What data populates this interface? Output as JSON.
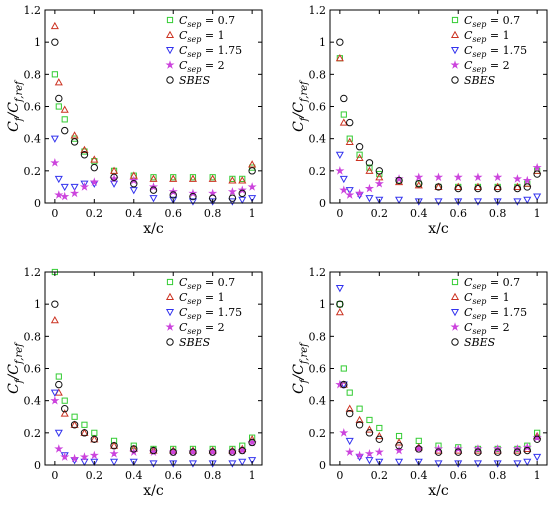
{
  "legend_items": [
    {
      "symbol": "square",
      "color": "#33cc33",
      "text": "C",
      "sub": "sep",
      "tail": " = 0.7"
    },
    {
      "symbol": "tri-up",
      "color": "#cc3322",
      "text": "C",
      "sub": "sep",
      "tail": " = 1"
    },
    {
      "symbol": "tri-down",
      "color": "#3333ee",
      "text": "C",
      "sub": "sep",
      "tail": " = 1.75"
    },
    {
      "symbol": "star",
      "color": "#cc44dd",
      "text": "C",
      "sub": "sep",
      "tail": " = 2"
    },
    {
      "symbol": "circle",
      "color": "#111111",
      "text": "SBES",
      "sub": "",
      "tail": ""
    }
  ],
  "colors": {
    "c07": "#33cc33",
    "c1": "#cc3322",
    "c175": "#3333ee",
    "c2": "#cc44dd",
    "sbes": "#111111"
  },
  "chart_data": [
    {
      "type": "scatter",
      "xlabel": "x/c",
      "ylabel": "Cf/Cf,ref",
      "xlim": [
        -0.05,
        1.05
      ],
      "ylim": [
        0,
        1.2
      ],
      "xticks": [
        "0",
        "0.2",
        "0.4",
        "0.6",
        "0.8",
        "1"
      ],
      "yticks": [
        "0",
        "0.2",
        "0.4",
        "0.6",
        "0.8",
        "1",
        "1.2"
      ],
      "legend_position": "top-right",
      "series": [
        {
          "name": "Csep = 0.7",
          "marker": "square",
          "x": [
            0.0,
            0.02,
            0.05,
            0.1,
            0.15,
            0.2,
            0.3,
            0.4,
            0.5,
            0.6,
            0.7,
            0.8,
            0.9,
            0.95,
            1.0
          ],
          "y": [
            0.8,
            0.6,
            0.52,
            0.4,
            0.32,
            0.26,
            0.2,
            0.17,
            0.16,
            0.16,
            0.16,
            0.16,
            0.15,
            0.15,
            0.22
          ]
        },
        {
          "name": "Csep = 1",
          "marker": "tri-up",
          "x": [
            0.0,
            0.02,
            0.05,
            0.1,
            0.15,
            0.2,
            0.3,
            0.4,
            0.5,
            0.6,
            0.7,
            0.8,
            0.9,
            0.95,
            1.0
          ],
          "y": [
            1.1,
            0.75,
            0.58,
            0.42,
            0.33,
            0.27,
            0.2,
            0.17,
            0.15,
            0.15,
            0.15,
            0.15,
            0.14,
            0.14,
            0.24
          ]
        },
        {
          "name": "Csep = 1.75",
          "marker": "tri-down",
          "x": [
            0.0,
            0.02,
            0.05,
            0.1,
            0.15,
            0.2,
            0.3,
            0.4,
            0.5,
            0.6,
            0.7,
            0.8,
            0.9,
            0.95,
            1.0
          ],
          "y": [
            0.4,
            0.15,
            0.1,
            0.1,
            0.12,
            0.12,
            0.12,
            0.08,
            0.03,
            0.02,
            0.01,
            0.01,
            0.01,
            0.02,
            0.03
          ]
        },
        {
          "name": "Csep = 2",
          "marker": "star",
          "x": [
            0.0,
            0.02,
            0.05,
            0.1,
            0.15,
            0.2,
            0.3,
            0.4,
            0.5,
            0.6,
            0.7,
            0.8,
            0.9,
            0.95,
            1.0
          ],
          "y": [
            0.25,
            0.05,
            0.04,
            0.06,
            0.1,
            0.13,
            0.15,
            0.14,
            0.1,
            0.07,
            0.06,
            0.06,
            0.07,
            0.08,
            0.1
          ]
        },
        {
          "name": "SBES",
          "marker": "circle",
          "x": [
            0.0,
            0.02,
            0.05,
            0.1,
            0.15,
            0.2,
            0.3,
            0.4,
            0.5,
            0.6,
            0.7,
            0.8,
            0.9,
            0.95,
            1.0
          ],
          "y": [
            1.0,
            0.65,
            0.45,
            0.38,
            0.3,
            0.22,
            0.16,
            0.12,
            0.08,
            0.05,
            0.04,
            0.03,
            0.03,
            0.06,
            0.2
          ]
        }
      ]
    },
    {
      "type": "scatter",
      "xlabel": "x/c",
      "ylabel": "Cf/Cf,ref",
      "xlim": [
        -0.05,
        1.05
      ],
      "ylim": [
        0,
        1.2
      ],
      "xticks": [
        "0",
        "0.2",
        "0.4",
        "0.6",
        "0.8",
        "1"
      ],
      "yticks": [
        "0",
        "0.2",
        "0.4",
        "0.6",
        "0.8",
        "1",
        "1.2"
      ],
      "legend_position": "top-right",
      "series": [
        {
          "name": "Csep = 0.7",
          "marker": "square",
          "x": [
            0.0,
            0.02,
            0.05,
            0.1,
            0.15,
            0.2,
            0.3,
            0.4,
            0.5,
            0.6,
            0.7,
            0.8,
            0.9,
            0.95,
            1.0
          ],
          "y": [
            0.9,
            0.55,
            0.4,
            0.3,
            0.22,
            0.18,
            0.14,
            0.12,
            0.1,
            0.1,
            0.1,
            0.1,
            0.1,
            0.12,
            0.2
          ]
        },
        {
          "name": "Csep = 1",
          "marker": "tri-up",
          "x": [
            0.0,
            0.02,
            0.05,
            0.1,
            0.15,
            0.2,
            0.3,
            0.4,
            0.5,
            0.6,
            0.7,
            0.8,
            0.9,
            0.95,
            1.0
          ],
          "y": [
            0.9,
            0.5,
            0.38,
            0.28,
            0.2,
            0.16,
            0.13,
            0.11,
            0.1,
            0.1,
            0.1,
            0.1,
            0.1,
            0.12,
            0.2
          ]
        },
        {
          "name": "Csep = 1.75",
          "marker": "tri-down",
          "x": [
            0.0,
            0.02,
            0.05,
            0.1,
            0.15,
            0.2,
            0.3,
            0.4,
            0.5,
            0.6,
            0.7,
            0.8,
            0.9,
            0.95,
            1.0
          ],
          "y": [
            0.3,
            0.15,
            0.08,
            0.05,
            0.03,
            0.02,
            0.02,
            0.01,
            0.01,
            0.01,
            0.01,
            0.01,
            0.01,
            0.02,
            0.04
          ]
        },
        {
          "name": "Csep = 2",
          "marker": "star",
          "x": [
            0.0,
            0.02,
            0.05,
            0.1,
            0.15,
            0.2,
            0.3,
            0.4,
            0.5,
            0.6,
            0.7,
            0.8,
            0.9,
            0.95,
            1.0
          ],
          "y": [
            0.2,
            0.08,
            0.05,
            0.06,
            0.09,
            0.12,
            0.15,
            0.16,
            0.16,
            0.16,
            0.16,
            0.16,
            0.15,
            0.14,
            0.22
          ]
        },
        {
          "name": "SBES",
          "marker": "circle",
          "x": [
            0.0,
            0.02,
            0.05,
            0.1,
            0.15,
            0.2,
            0.3,
            0.4,
            0.5,
            0.6,
            0.7,
            0.8,
            0.9,
            0.95,
            1.0
          ],
          "y": [
            1.0,
            0.65,
            0.5,
            0.35,
            0.25,
            0.2,
            0.14,
            0.12,
            0.1,
            0.09,
            0.09,
            0.09,
            0.09,
            0.1,
            0.18
          ]
        }
      ]
    },
    {
      "type": "scatter",
      "xlabel": "x/c",
      "ylabel": "Cf/Cf,ref",
      "xlim": [
        -0.05,
        1.05
      ],
      "ylim": [
        0,
        1.2
      ],
      "xticks": [
        "0",
        "0.2",
        "0.4",
        "0.6",
        "0.8",
        "1"
      ],
      "yticks": [
        "0",
        "0.2",
        "0.4",
        "0.6",
        "0.8",
        "1",
        "1.2"
      ],
      "legend_position": "top-right",
      "series": [
        {
          "name": "Csep = 0.7",
          "marker": "square",
          "x": [
            0.0,
            0.02,
            0.05,
            0.1,
            0.15,
            0.2,
            0.3,
            0.4,
            0.5,
            0.6,
            0.7,
            0.8,
            0.9,
            0.95,
            1.0
          ],
          "y": [
            1.2,
            0.55,
            0.4,
            0.3,
            0.25,
            0.2,
            0.15,
            0.12,
            0.1,
            0.1,
            0.1,
            0.1,
            0.1,
            0.12,
            0.17
          ]
        },
        {
          "name": "Csep = 1",
          "marker": "tri-up",
          "x": [
            0.0,
            0.02,
            0.05,
            0.1,
            0.15,
            0.2,
            0.3,
            0.4,
            0.5,
            0.6,
            0.7,
            0.8,
            0.9,
            0.95,
            1.0
          ],
          "y": [
            0.9,
            0.45,
            0.32,
            0.25,
            0.2,
            0.16,
            0.12,
            0.1,
            0.09,
            0.09,
            0.09,
            0.09,
            0.09,
            0.1,
            0.16
          ]
        },
        {
          "name": "Csep = 1.75",
          "marker": "tri-down",
          "x": [
            0.0,
            0.02,
            0.05,
            0.1,
            0.15,
            0.2,
            0.3,
            0.4,
            0.5,
            0.6,
            0.7,
            0.8,
            0.9,
            0.95,
            1.0
          ],
          "y": [
            0.45,
            0.2,
            0.06,
            0.03,
            0.02,
            0.02,
            0.02,
            0.02,
            0.01,
            0.01,
            0.01,
            0.01,
            0.01,
            0.02,
            0.03
          ]
        },
        {
          "name": "Csep = 2",
          "marker": "star",
          "x": [
            0.0,
            0.02,
            0.05,
            0.1,
            0.15,
            0.2,
            0.3,
            0.4,
            0.5,
            0.6,
            0.7,
            0.8,
            0.9,
            0.95,
            1.0
          ],
          "y": [
            0.4,
            0.1,
            0.05,
            0.04,
            0.05,
            0.06,
            0.07,
            0.08,
            0.08,
            0.08,
            0.08,
            0.08,
            0.08,
            0.09,
            0.14
          ]
        },
        {
          "name": "SBES",
          "marker": "circle",
          "x": [
            0.0,
            0.02,
            0.05,
            0.1,
            0.15,
            0.2,
            0.3,
            0.4,
            0.5,
            0.6,
            0.7,
            0.8,
            0.9,
            0.95,
            1.0
          ],
          "y": [
            1.0,
            0.5,
            0.35,
            0.25,
            0.2,
            0.16,
            0.12,
            0.1,
            0.09,
            0.08,
            0.08,
            0.08,
            0.08,
            0.09,
            0.14
          ]
        }
      ]
    },
    {
      "type": "scatter",
      "xlabel": "x/c",
      "ylabel": "Cf/Cf,ref",
      "xlim": [
        -0.05,
        1.05
      ],
      "ylim": [
        0,
        1.2
      ],
      "xticks": [
        "0",
        "0.2",
        "0.4",
        "0.6",
        "0.8",
        "1"
      ],
      "yticks": [
        "0",
        "0.2",
        "0.4",
        "0.6",
        "0.8",
        "1",
        "1.2"
      ],
      "legend_position": "top-right",
      "series": [
        {
          "name": "Csep = 0.7",
          "marker": "square",
          "x": [
            0.0,
            0.02,
            0.05,
            0.1,
            0.15,
            0.2,
            0.3,
            0.4,
            0.5,
            0.6,
            0.7,
            0.8,
            0.9,
            0.95,
            1.0
          ],
          "y": [
            1.0,
            0.6,
            0.45,
            0.35,
            0.28,
            0.23,
            0.18,
            0.15,
            0.12,
            0.11,
            0.1,
            0.1,
            0.1,
            0.12,
            0.2
          ]
        },
        {
          "name": "Csep = 1",
          "marker": "tri-up",
          "x": [
            0.0,
            0.02,
            0.05,
            0.1,
            0.15,
            0.2,
            0.3,
            0.4,
            0.5,
            0.6,
            0.7,
            0.8,
            0.9,
            0.95,
            1.0
          ],
          "y": [
            0.95,
            0.5,
            0.35,
            0.28,
            0.22,
            0.18,
            0.14,
            0.11,
            0.09,
            0.09,
            0.09,
            0.09,
            0.09,
            0.1,
            0.18
          ]
        },
        {
          "name": "Csep = 1.75",
          "marker": "tri-down",
          "x": [
            0.0,
            0.02,
            0.05,
            0.1,
            0.15,
            0.2,
            0.3,
            0.4,
            0.5,
            0.6,
            0.7,
            0.8,
            0.9,
            0.95,
            1.0
          ],
          "y": [
            1.1,
            0.5,
            0.15,
            0.05,
            0.03,
            0.02,
            0.02,
            0.02,
            0.01,
            0.01,
            0.01,
            0.01,
            0.01,
            0.02,
            0.05
          ]
        },
        {
          "name": "Csep = 2",
          "marker": "star",
          "x": [
            0.0,
            0.02,
            0.05,
            0.1,
            0.15,
            0.2,
            0.3,
            0.4,
            0.5,
            0.6,
            0.7,
            0.8,
            0.9,
            0.95,
            1.0
          ],
          "y": [
            0.5,
            0.2,
            0.08,
            0.06,
            0.07,
            0.08,
            0.09,
            0.1,
            0.1,
            0.1,
            0.1,
            0.1,
            0.1,
            0.11,
            0.17
          ]
        },
        {
          "name": "SBES",
          "marker": "circle",
          "x": [
            0.0,
            0.02,
            0.05,
            0.1,
            0.15,
            0.2,
            0.3,
            0.4,
            0.5,
            0.6,
            0.7,
            0.8,
            0.9,
            0.95,
            1.0
          ],
          "y": [
            1.0,
            0.5,
            0.32,
            0.25,
            0.2,
            0.16,
            0.12,
            0.1,
            0.08,
            0.08,
            0.08,
            0.08,
            0.08,
            0.09,
            0.16
          ]
        }
      ]
    }
  ]
}
